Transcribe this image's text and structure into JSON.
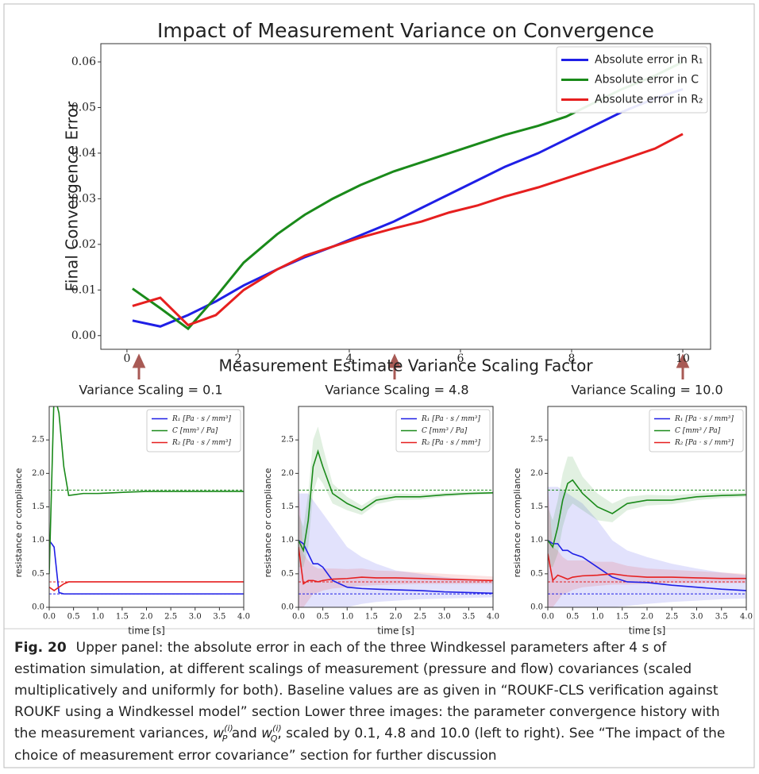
{
  "chart_data": [
    {
      "type": "line",
      "title": "Impact of Measurement Variance on Convergence",
      "x_label": "Measurement Estimate Variance Scaling Factor",
      "y_label": "Final Convergence Error",
      "x": [
        0.1,
        0.6,
        1.1,
        1.6,
        2.1,
        2.7,
        3.2,
        3.7,
        4.2,
        4.8,
        5.3,
        5.8,
        6.3,
        6.8,
        7.4,
        7.9,
        8.4,
        8.9,
        9.5,
        10.0
      ],
      "series": [
        {
          "name": "Absolute error in R₁",
          "color": "#1f1fe6",
          "values": [
            0.0033,
            0.002,
            0.0045,
            0.0075,
            0.011,
            0.0145,
            0.0172,
            0.0195,
            0.022,
            0.025,
            0.028,
            0.031,
            0.034,
            0.037,
            0.04,
            0.043,
            0.046,
            0.049,
            0.052,
            0.054
          ]
        },
        {
          "name": "Absolute error in C",
          "color": "#1a8a1a",
          "values": [
            0.0103,
            0.006,
            0.0015,
            0.0085,
            0.016,
            0.0222,
            0.0265,
            0.03,
            0.033,
            0.036,
            0.038,
            0.04,
            0.042,
            0.044,
            0.046,
            0.048,
            0.051,
            0.054,
            0.057,
            0.06
          ]
        },
        {
          "name": "Absolute error in R₂",
          "color": "#e61f1f",
          "values": [
            0.0065,
            0.0083,
            0.0023,
            0.0045,
            0.01,
            0.0145,
            0.0175,
            0.0195,
            0.0215,
            0.0235,
            0.025,
            0.027,
            0.0285,
            0.0305,
            0.0325,
            0.0345,
            0.0365,
            0.0385,
            0.041,
            0.0442
          ]
        }
      ],
      "xlim": [
        -0.47,
        10.5
      ],
      "xticks": [
        0,
        2,
        4,
        6,
        8,
        10
      ],
      "ylim": [
        -0.003,
        0.064
      ],
      "yticks": [
        {
          "value": 0,
          "label": "0.00"
        },
        0.01,
        0.02,
        0.03,
        0.04,
        0.05,
        0.06
      ],
      "legend": "upper right"
    },
    {
      "type": "line",
      "title": "Variance Scaling = 0.1",
      "x_label": "time [s]",
      "y_label": "resistance or compliance",
      "x": [
        0,
        0.1,
        0.2,
        0.3,
        0.4,
        0.5,
        0.7,
        1.0,
        1.3,
        1.6,
        2.0,
        2.5,
        3.0,
        3.5,
        4.0
      ],
      "series": [
        {
          "name": "R₁ [Pa · s / mm³]",
          "color": "#1f1fe6",
          "values": [
            1.0,
            0.9,
            0.22,
            0.2,
            0.2,
            0.2,
            0.2,
            0.2,
            0.2,
            0.2,
            0.2,
            0.2,
            0.2,
            0.2,
            0.2
          ]
        },
        {
          "name": "C [mm³ / Pa]",
          "color": "#1a8a1a",
          "values": [
            0.5,
            3.2,
            2.9,
            2.1,
            1.67,
            1.68,
            1.7,
            1.7,
            1.71,
            1.72,
            1.73,
            1.73,
            1.73,
            1.73,
            1.73
          ]
        },
        {
          "name": "R₂ [Pa · s / mm³]",
          "color": "#e61f1f",
          "values": [
            0.3,
            0.25,
            0.3,
            0.35,
            0.38,
            0.38,
            0.38,
            0.38,
            0.38,
            0.38,
            0.38,
            0.38,
            0.38,
            0.38,
            0.38
          ]
        }
      ],
      "reference_lines": [
        {
          "color": "#1a8a1a",
          "value": 1.75
        },
        {
          "color": "#e61f1f",
          "value": 0.38
        },
        {
          "color": "#1f1fe6",
          "value": 0.2
        }
      ],
      "xlim": [
        0,
        4
      ],
      "xticks": [
        {
          "value": 0,
          "label": "0.0"
        },
        0.5,
        {
          "value": 1,
          "label": "1.0"
        },
        1.5,
        {
          "value": 2,
          "label": "2.0"
        },
        2.5,
        {
          "value": 3,
          "label": "3.0"
        },
        3.5,
        {
          "value": 4,
          "label": "4.0"
        }
      ],
      "ylim": [
        0,
        3.0
      ],
      "yticks": [
        {
          "value": 0,
          "label": "0.0"
        },
        0.5,
        {
          "value": 1,
          "label": "1.0"
        },
        1.5,
        {
          "value": 2,
          "label": "2.0"
        },
        2.5
      ],
      "legend": "upper right"
    },
    {
      "type": "line",
      "title": "Variance Scaling = 4.8",
      "x_label": "time [s]",
      "y_label": "resistance or compliance",
      "x": [
        0,
        0.1,
        0.2,
        0.3,
        0.4,
        0.5,
        0.7,
        1.0,
        1.3,
        1.6,
        2.0,
        2.5,
        3.0,
        3.5,
        4.0
      ],
      "series": [
        {
          "name": "R₁ [Pa · s / mm³]",
          "color": "#1f1fe6",
          "values": [
            1.0,
            0.95,
            0.8,
            0.65,
            0.65,
            0.6,
            0.4,
            0.3,
            0.28,
            0.27,
            0.26,
            0.25,
            0.23,
            0.22,
            0.21
          ],
          "lower": [
            0.0,
            0.0,
            0.0,
            0.0,
            0.0,
            0.0,
            0.0,
            0.0,
            0.05,
            0.08,
            0.1,
            0.12,
            0.13,
            0.14,
            0.15
          ],
          "upper": [
            1.7,
            1.7,
            1.7,
            1.6,
            1.5,
            1.4,
            1.2,
            0.9,
            0.75,
            0.65,
            0.55,
            0.5,
            0.45,
            0.42,
            0.4
          ]
        },
        {
          "name": "C [mm³ / Pa]",
          "color": "#1a8a1a",
          "values": [
            1.0,
            0.85,
            1.3,
            2.1,
            2.33,
            2.1,
            1.7,
            1.55,
            1.45,
            1.6,
            1.65,
            1.65,
            1.68,
            1.7,
            1.71
          ],
          "lower": [
            0.6,
            0.6,
            0.9,
            1.7,
            1.95,
            1.85,
            1.55,
            1.45,
            1.38,
            1.54,
            1.6,
            1.61,
            1.65,
            1.67,
            1.69
          ],
          "upper": [
            1.4,
            1.2,
            1.7,
            2.5,
            2.7,
            2.4,
            1.85,
            1.65,
            1.52,
            1.66,
            1.7,
            1.69,
            1.71,
            1.73,
            1.73
          ]
        },
        {
          "name": "R₂ [Pa · s / mm³]",
          "color": "#e61f1f",
          "values": [
            0.9,
            0.35,
            0.4,
            0.4,
            0.38,
            0.4,
            0.42,
            0.43,
            0.45,
            0.44,
            0.44,
            0.43,
            0.42,
            0.41,
            0.4
          ],
          "lower": [
            0.0,
            0.0,
            0.1,
            0.2,
            0.22,
            0.25,
            0.28,
            0.3,
            0.32,
            0.33,
            0.34,
            0.35,
            0.35,
            0.35,
            0.35
          ],
          "upper": [
            1.8,
            0.8,
            0.7,
            0.62,
            0.58,
            0.58,
            0.58,
            0.57,
            0.58,
            0.55,
            0.54,
            0.52,
            0.5,
            0.48,
            0.46
          ]
        }
      ],
      "reference_lines": [
        {
          "color": "#1a8a1a",
          "value": 1.75
        },
        {
          "color": "#e61f1f",
          "value": 0.38
        },
        {
          "color": "#1f1fe6",
          "value": 0.2
        }
      ],
      "xlim": [
        0,
        4
      ],
      "xticks": [
        {
          "value": 0,
          "label": "0.0"
        },
        0.5,
        {
          "value": 1,
          "label": "1.0"
        },
        1.5,
        {
          "value": 2,
          "label": "2.0"
        },
        2.5,
        {
          "value": 3,
          "label": "3.0"
        },
        3.5,
        {
          "value": 4,
          "label": "4.0"
        }
      ],
      "ylim": [
        0,
        3.0
      ],
      "yticks": [
        {
          "value": 0,
          "label": "0.0"
        },
        0.5,
        {
          "value": 1,
          "label": "1.0"
        },
        1.5,
        {
          "value": 2,
          "label": "2.0"
        },
        2.5
      ],
      "legend": "upper right"
    },
    {
      "type": "line",
      "title": "Variance Scaling = 10.0",
      "x_label": "time [s]",
      "y_label": "resistance or compliance",
      "x": [
        0,
        0.1,
        0.2,
        0.3,
        0.4,
        0.5,
        0.7,
        1.0,
        1.3,
        1.6,
        2.0,
        2.5,
        3.0,
        3.5,
        4.0
      ],
      "series": [
        {
          "name": "R₁ [Pa · s / mm³]",
          "color": "#1f1fe6",
          "values": [
            1.0,
            0.95,
            0.95,
            0.85,
            0.85,
            0.8,
            0.75,
            0.6,
            0.45,
            0.38,
            0.37,
            0.33,
            0.3,
            0.27,
            0.25
          ],
          "lower": [
            0.0,
            0.0,
            0.0,
            0.0,
            0.0,
            0.0,
            0.0,
            0.0,
            0.0,
            0.02,
            0.05,
            0.08,
            0.1,
            0.12,
            0.13
          ],
          "upper": [
            1.8,
            1.8,
            1.8,
            1.75,
            1.7,
            1.65,
            1.55,
            1.3,
            1.0,
            0.85,
            0.75,
            0.65,
            0.58,
            0.52,
            0.48
          ]
        },
        {
          "name": "C [mm³ / Pa]",
          "color": "#1a8a1a",
          "values": [
            1.0,
            0.9,
            1.2,
            1.6,
            1.85,
            1.9,
            1.7,
            1.5,
            1.4,
            1.55,
            1.6,
            1.6,
            1.65,
            1.67,
            1.68
          ],
          "lower": [
            0.6,
            0.6,
            0.8,
            1.2,
            1.45,
            1.55,
            1.45,
            1.3,
            1.27,
            1.45,
            1.52,
            1.54,
            1.6,
            1.63,
            1.65
          ],
          "upper": [
            1.5,
            1.3,
            1.6,
            2.0,
            2.25,
            2.25,
            1.95,
            1.7,
            1.55,
            1.65,
            1.68,
            1.67,
            1.7,
            1.71,
            1.71
          ]
        },
        {
          "name": "R₂ [Pa · s / mm³]",
          "color": "#e61f1f",
          "values": [
            0.8,
            0.4,
            0.48,
            0.45,
            0.42,
            0.45,
            0.47,
            0.48,
            0.5,
            0.47,
            0.45,
            0.45,
            0.44,
            0.43,
            0.43
          ],
          "lower": [
            0.0,
            0.0,
            0.1,
            0.2,
            0.22,
            0.26,
            0.3,
            0.32,
            0.34,
            0.34,
            0.35,
            0.36,
            0.36,
            0.36,
            0.36
          ],
          "upper": [
            1.8,
            0.9,
            0.85,
            0.75,
            0.7,
            0.7,
            0.7,
            0.68,
            0.68,
            0.62,
            0.58,
            0.56,
            0.54,
            0.52,
            0.5
          ]
        }
      ],
      "reference_lines": [
        {
          "color": "#1a8a1a",
          "value": 1.75
        },
        {
          "color": "#e61f1f",
          "value": 0.38
        },
        {
          "color": "#1f1fe6",
          "value": 0.2
        }
      ],
      "xlim": [
        0,
        4
      ],
      "xticks": [
        {
          "value": 0,
          "label": "0.0"
        },
        0.5,
        {
          "value": 1,
          "label": "1.0"
        },
        1.5,
        {
          "value": 2,
          "label": "2.0"
        },
        2.5,
        {
          "value": 3,
          "label": "3.0"
        },
        3.5,
        {
          "value": 4,
          "label": "4.0"
        }
      ],
      "ylim": [
        0,
        3.0
      ],
      "yticks": [
        {
          "value": 0,
          "label": "0.0"
        },
        0.5,
        {
          "value": 1,
          "label": "1.0"
        },
        1.5,
        {
          "value": 2,
          "label": "2.0"
        },
        2.5
      ],
      "legend": "upper right"
    }
  ],
  "caption": {
    "label": "Fig. 20",
    "segments": [
      {
        "text": "Upper panel: the absolute error in each of the three Windkessel parameters after 4 s of estimation simulation, at different scalings of measurement (pressure and flow) covariances (scaled multiplicatively and uniformly for both). Baseline values are as given in “ROUKF-CLS verification against ROUKF using a Windkessel model” section Lower three images: the parameter convergence history with the measurement variances, ",
        "style": "normal"
      },
      {
        "text": "w",
        "style": "italic"
      },
      {
        "text": "(i)",
        "style": "sup"
      },
      {
        "text": "P",
        "style": "sub"
      },
      {
        "text": " and ",
        "style": "normal"
      },
      {
        "text": "w",
        "style": "italic"
      },
      {
        "text": "(i)",
        "style": "sup"
      },
      {
        "text": "Q",
        "style": "sub"
      },
      {
        "text": ", scaled by 0.1, 4.8 and 10.0 (left to right). See “The impact of the choice of measurement error covariance” section for further discussion",
        "style": "normal"
      }
    ]
  }
}
